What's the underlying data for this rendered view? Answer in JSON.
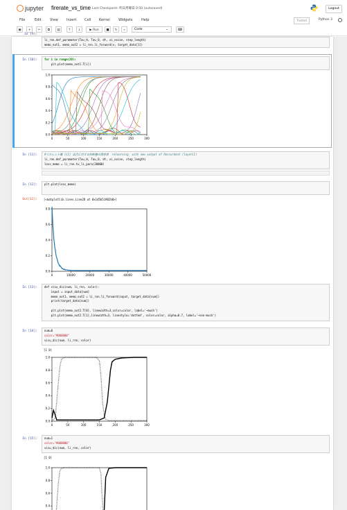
{
  "header": {
    "logo_text": "jupyter",
    "notebook_title": "firerate_vs_time",
    "checkpoint": "Last Checkpoint: 昨日月曜日 0:50 (autosaved)",
    "logout": "Logout"
  },
  "menu": [
    "File",
    "Edit",
    "View",
    "Insert",
    "Cell",
    "Kernel",
    "Widgets",
    "Help"
  ],
  "trusted": "Trusted",
  "kernel": "Python 3",
  "toolbar": {
    "run_label": "▶ Run",
    "cell_type": "Code"
  },
  "cells": {
    "c9": {
      "lines": [
        "li_rnn.def_parameter(Tau_H, Tau_O, dt, xi_noise, step_length)",
        "memo_out1, memo_out2 = li_rnn.li_forward(x, target_data[1])"
      ]
    },
    "c10": {
      "prompt": "In [10]:",
      "lines": [
        "for i in range(20):",
        "    plt.plot(memo_out1.T[i])"
      ]
    },
    "c11": {
      "prompt": "In [11]:",
      "lines": [
        "#リカレント層 (LI) 出力に対する判断層の再学習  relearning  with new output of Reccurdent (layerLI)",
        "li_rnn.def_parameter(Tau_H, Tau_O, dt, xi_noise, step_length)",
        "loss_memo = li_rnn.tu_li_para(20000)"
      ]
    },
    "c12": {
      "prompt": "In [12]:",
      "lines": [
        "plt.plot(loss_memo)"
      ],
      "out_prompt": "Out[12]:",
      "out_text": "[<matplotlib.lines.Line2D at 0x1d5b51902b0>]"
    },
    "c13": {
      "prompt": "In [13]:",
      "lines": [
        "def visu_dic(num, li_rnn, color):",
        "    input = input_data[num]",
        "    memo_out1, memo_out2 = li_rnn.li_forward(input, target_data[num])",
        "    print(target_data[num])",
        "",
        "    plt.plot(memo_out2.T[0], linewidth=3,color=color, label='~mush')",
        "    plt.plot(memo_out2.T[1],linewidth=3, linestyle='dotted', color=color, alpha=0.7, label='~non-mush')"
      ]
    },
    "c14": {
      "prompt": "In [14]:",
      "lines": [
        "num=0",
        "color=\"#000000\"",
        "visu_dic(num, li_rnn, color)"
      ],
      "out_text": "[1 0]"
    },
    "c15": {
      "prompt": "In [15]:",
      "lines": [
        "num=1",
        "color=\"#000000\"",
        "visu_dic(num, li_rnn, color)"
      ],
      "out_text": "[1 0]"
    }
  },
  "chart_data": [
    {
      "type": "line",
      "xlim": [
        0,
        300
      ],
      "ylim": [
        0,
        1.0
      ],
      "xticks": [
        "0",
        "50",
        "100",
        "150",
        "200",
        "250",
        "300"
      ],
      "yticks": [
        "0.0",
        "0.2",
        "0.4",
        "0.6",
        "0.8",
        "1.0"
      ],
      "series_count": 20
    },
    {
      "type": "line",
      "xlim": [
        0,
        50000
      ],
      "ylim": [
        0,
        0.8
      ],
      "xticks": [
        "0",
        "10000",
        "20000",
        "30000",
        "40000",
        "50000"
      ],
      "yticks": [
        "0.0",
        "0.2",
        "0.4",
        "0.6",
        "0.8"
      ],
      "color": "#1f77b4"
    },
    {
      "type": "line",
      "xlim": [
        0,
        300
      ],
      "ylim": [
        0,
        1.0
      ],
      "xticks": [
        "0",
        "50",
        "100",
        "150",
        "200",
        "250",
        "300"
      ],
      "yticks": [
        "0.0",
        "0.2",
        "0.4",
        "0.6",
        "0.8",
        "1.0"
      ],
      "series": [
        {
          "style": "solid",
          "x": [
            0,
            5,
            10,
            15,
            20,
            30,
            150,
            165,
            175,
            185,
            190,
            200,
            220,
            260,
            300
          ],
          "y": [
            0.05,
            0.17,
            0.1,
            0.02,
            0.02,
            0.02,
            0.02,
            0.05,
            0.3,
            0.8,
            0.93,
            0.97,
            0.99,
            1.0,
            1.0
          ]
        },
        {
          "style": "dotted",
          "x": [
            0,
            5,
            10,
            15,
            20,
            25,
            30,
            40,
            60,
            140,
            150,
            155,
            160,
            165,
            170,
            180,
            300
          ],
          "y": [
            0.02,
            0.02,
            0.05,
            0.3,
            0.6,
            0.85,
            0.97,
            1.0,
            1.0,
            1.0,
            0.95,
            0.7,
            0.3,
            0.1,
            0.03,
            0.01,
            0.01
          ]
        }
      ]
    },
    {
      "type": "line",
      "xlim": [
        0,
        300
      ],
      "ylim": [
        0,
        1.0
      ],
      "yticks": [
        "0.4",
        "0.6",
        "0.8",
        "1.0"
      ],
      "series": [
        {
          "style": "dotted",
          "x": [
            0,
            5,
            10,
            15,
            20,
            25,
            30,
            40,
            60,
            150,
            155,
            158,
            162
          ],
          "y": [
            0.02,
            0.03,
            0.1,
            0.4,
            0.75,
            0.95,
            0.99,
            1.0,
            1.0,
            1.0,
            0.9,
            0.6,
            0.3
          ]
        },
        {
          "style": "solid",
          "x": [
            150,
            160,
            165,
            170,
            180,
            200,
            300
          ],
          "y": [
            0.02,
            0.05,
            0.3,
            0.85,
            0.99,
            1.0,
            1.0
          ]
        }
      ]
    }
  ]
}
